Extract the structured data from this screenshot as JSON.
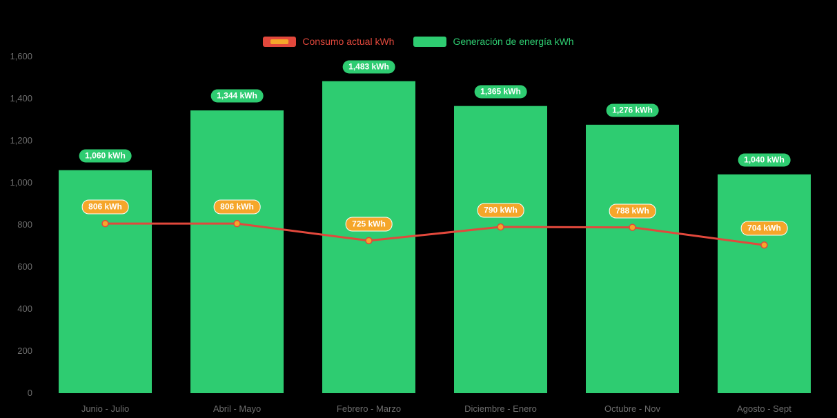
{
  "chart_data": {
    "type": "bar",
    "title": "",
    "categories": [
      "Junio - Julio",
      "Abril - Mayo",
      "Febrero - Marzo",
      "Diciembre - Enero",
      "Octubre - Nov",
      "Agosto - Sept"
    ],
    "series": [
      {
        "name": "Consumo actual kWh",
        "type": "line",
        "values": [
          806,
          806,
          725,
          790,
          788,
          704
        ],
        "point_labels": [
          "806 kWh",
          "806 kWh",
          "725 kWh",
          "790 kWh",
          "788 kWh",
          "704 kWh"
        ],
        "color": "#e2483c",
        "marker_color": "#f5a62a"
      },
      {
        "name": "Generación de energía kWh",
        "type": "bar",
        "values": [
          1060,
          1344,
          1483,
          1365,
          1276,
          1040
        ],
        "point_labels": [
          "1,060 kWh",
          "1,344 kWh",
          "1,483 kWh",
          "1,365 kWh",
          "1,276 kWh",
          "1,040 kWh"
        ],
        "color": "#2ecc71"
      }
    ],
    "ylim": [
      0,
      1600
    ],
    "yticks": [
      "0",
      "200",
      "400",
      "600",
      "800",
      "1,000",
      "1,200",
      "1,400",
      "1,600"
    ],
    "grid": false,
    "legend_position": "top",
    "xlabel": "",
    "ylabel": ""
  },
  "colors": {
    "background": "#000000",
    "bar": "#2ecc71",
    "line": "#e2483c",
    "marker": "#f5a62a",
    "badge_text": "#ffffff",
    "badge_orange_border": "#ffffff",
    "axis_text": "#6e6e6e"
  }
}
